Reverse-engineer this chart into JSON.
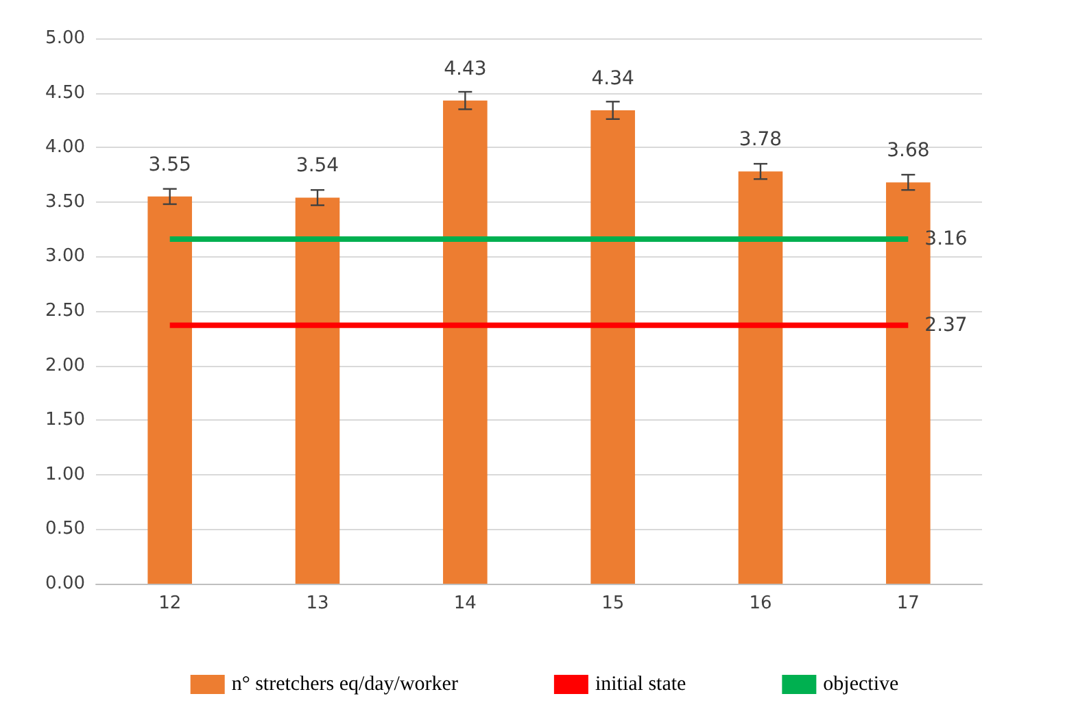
{
  "chart_data": {
    "type": "bar",
    "categories": [
      "12",
      "13",
      "14",
      "15",
      "16",
      "17"
    ],
    "series": [
      {
        "name": "n° stretchers eq/day/worker",
        "color": "#ed7d31",
        "values": [
          3.55,
          3.54,
          4.43,
          4.34,
          3.78,
          3.68
        ],
        "errors": [
          0.07,
          0.07,
          0.08,
          0.08,
          0.07,
          0.07
        ],
        "value_labels": [
          "3.55",
          "3.54",
          "4.43",
          "4.34",
          "3.78",
          "3.68"
        ]
      },
      {
        "name": "initial state",
        "type": "line",
        "color": "#ff0000",
        "values": [
          2.37,
          2.37,
          2.37,
          2.37,
          2.37,
          2.37
        ],
        "value_labels": [
          null,
          null,
          null,
          null,
          null,
          "2.37"
        ]
      },
      {
        "name": "objective",
        "type": "line",
        "color": "#00b050",
        "values": [
          3.16,
          3.16,
          3.16,
          3.16,
          3.16,
          3.16
        ],
        "value_labels": [
          null,
          null,
          null,
          null,
          null,
          "3.16"
        ]
      }
    ],
    "ylim": [
      0,
      5
    ],
    "yticks": [
      {
        "value": 0,
        "label": "0.00"
      },
      {
        "value": 0.5,
        "label": "0.50"
      },
      {
        "value": 1,
        "label": "1.00"
      },
      {
        "value": 1.5,
        "label": "1.50"
      },
      {
        "value": 2,
        "label": "2.00"
      },
      {
        "value": 2.5,
        "label": "2.50"
      },
      {
        "value": 3,
        "label": "3.00"
      },
      {
        "value": 3.5,
        "label": "3.50"
      },
      {
        "value": 4,
        "label": "4.00"
      },
      {
        "value": 4.5,
        "label": "4.50"
      },
      {
        "value": 5,
        "label": "5.00"
      }
    ],
    "grid": "y",
    "legend": "bottom",
    "marker": "none"
  }
}
